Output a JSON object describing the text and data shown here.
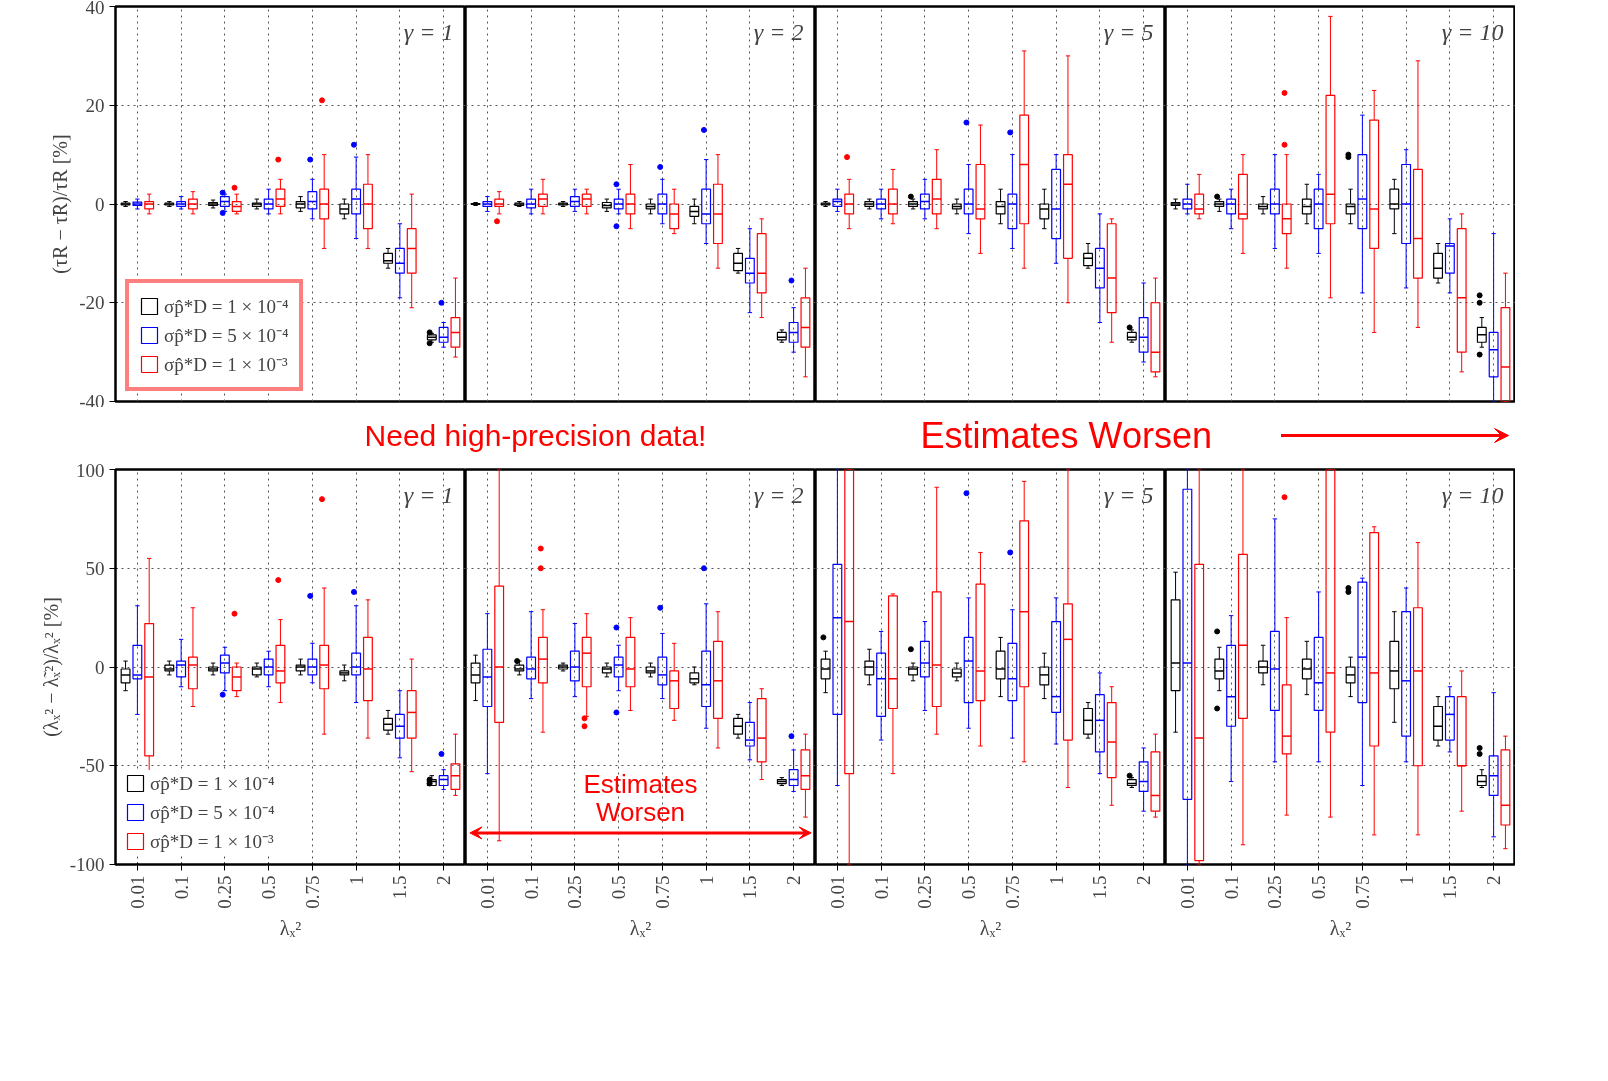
{
  "chart_data": [
    {
      "type": "box",
      "categories": [
        "0.01",
        "0.1",
        "0.25",
        "0.5",
        "0.75",
        "1",
        "1.5",
        "2"
      ],
      "ylim": [
        -40,
        40
      ],
      "yticks": [
        -40,
        -20,
        0,
        20,
        40
      ],
      "grid": true,
      "ylabel": "(τR − τ̃R)/τR [%]",
      "tick_labels": "y",
      "legend": "bottom left",
      "annotations": [
        "γ = 1"
      ],
      "series": [
        {
          "name": "σp̂*D = 1 × 10⁻⁴",
          "color": "#000000",
          "boxes": [
            {
              "low": -0.5,
              "q1": -0.2,
              "median": 0,
              "q3": 0.2,
              "high": 0.5
            },
            {
              "low": -0.5,
              "q1": -0.2,
              "median": 0,
              "q3": 0.2,
              "high": 0.5
            },
            {
              "low": -0.8,
              "q1": -0.3,
              "median": 0,
              "q3": 0.3,
              "high": 0.8
            },
            {
              "low": -1,
              "q1": -0.5,
              "median": 0,
              "q3": 0.2,
              "high": 1
            },
            {
              "low": -1.5,
              "q1": -0.8,
              "median": 0,
              "q3": 0.5,
              "high": 1.5
            },
            {
              "low": -3,
              "q1": -2,
              "median": -1,
              "q3": 0,
              "high": 1
            },
            {
              "low": -13,
              "q1": -12,
              "median": -11.5,
              "q3": -10,
              "high": -9
            },
            {
              "low": -28,
              "q1": -27.5,
              "median": -27,
              "q3": -26.5,
              "high": -26.2,
              "outliers": [
                -26,
                -28.2
              ]
            }
          ]
        },
        {
          "name": "σp̂*D = 5 × 10⁻⁴",
          "color": "#0000ff",
          "boxes": [
            {
              "low": -1,
              "q1": -0.3,
              "median": 0,
              "q3": 0.4,
              "high": 1
            },
            {
              "low": -1,
              "q1": -0.5,
              "median": 0,
              "q3": 0.5,
              "high": 1.5
            },
            {
              "low": -1.5,
              "q1": -0.5,
              "median": 0.5,
              "q3": 1.5,
              "high": 2,
              "outliers": [
                2.3,
                -1.8
              ]
            },
            {
              "low": -2,
              "q1": -1,
              "median": 0,
              "q3": 1,
              "high": 3
            },
            {
              "low": -3,
              "q1": -1,
              "median": 0.5,
              "q3": 2.5,
              "high": 5,
              "outliers": [
                9
              ]
            },
            {
              "low": -7,
              "q1": -2,
              "median": 1,
              "q3": 3,
              "high": 9.5,
              "outliers": [
                12
              ]
            },
            {
              "low": -19,
              "q1": -14,
              "median": -12,
              "q3": -9,
              "high": -4
            },
            {
              "low": -29,
              "q1": -28,
              "median": -27,
              "q3": -25,
              "high": -24,
              "outliers": [
                -20
              ]
            }
          ]
        },
        {
          "name": "σp̂*D = 1 × 10⁻³",
          "color": "#ff0000",
          "boxes": [
            {
              "low": -2,
              "q1": -1,
              "median": 0,
              "q3": 0.5,
              "high": 2
            },
            {
              "low": -2,
              "q1": -1,
              "median": 0,
              "q3": 1,
              "high": 2.5
            },
            {
              "low": -2,
              "q1": -1.5,
              "median": -0.5,
              "q3": 0.5,
              "high": 2,
              "outliers": [
                3.3
              ]
            },
            {
              "low": -2,
              "q1": -0.5,
              "median": 1,
              "q3": 3,
              "high": 5,
              "outliers": [
                9
              ]
            },
            {
              "low": -9,
              "q1": -3,
              "median": 0,
              "q3": 3,
              "high": 10,
              "outliers": [
                21
              ]
            },
            {
              "low": -9,
              "q1": -5,
              "median": 0,
              "q3": 4,
              "high": 10
            },
            {
              "low": -21,
              "q1": -14,
              "median": -9,
              "q3": -5,
              "high": 2
            },
            {
              "low": -31,
              "q1": -29,
              "median": -26,
              "q3": -23,
              "high": -15
            }
          ]
        }
      ]
    },
    {
      "type": "box",
      "categories": [
        "0.01",
        "0.1",
        "0.25",
        "0.5",
        "0.75",
        "1",
        "1.5",
        "2"
      ],
      "ylim": [
        -40,
        40
      ],
      "yticks": [
        -40,
        -20,
        0,
        20,
        40
      ],
      "grid": true,
      "tick_labels": false,
      "annotations": [
        "γ = 2"
      ],
      "series": [
        {
          "color": "#000000",
          "boxes": [
            {
              "low": -0.3,
              "q1": -0.1,
              "median": 0,
              "q3": 0.1,
              "high": 0.3
            },
            {
              "low": -0.5,
              "q1": -0.3,
              "median": 0,
              "q3": 0.2,
              "high": 0.5
            },
            {
              "low": -0.5,
              "q1": -0.2,
              "median": 0,
              "q3": 0.2,
              "high": 0.5
            },
            {
              "low": -1.5,
              "q1": -0.8,
              "median": -0.3,
              "q3": 0.3,
              "high": 1
            },
            {
              "low": -2,
              "q1": -1,
              "median": -0.5,
              "q3": 0,
              "high": 1
            },
            {
              "low": -4,
              "q1": -2.5,
              "median": -1.5,
              "q3": -0.5,
              "high": 1
            },
            {
              "low": -14,
              "q1": -13.5,
              "median": -12,
              "q3": -10,
              "high": -9
            },
            {
              "low": -28,
              "q1": -27.5,
              "median": -27,
              "q3": -26,
              "high": -25.5
            }
          ]
        },
        {
          "color": "#0000ff",
          "boxes": [
            {
              "low": -1.5,
              "q1": -0.5,
              "median": 0,
              "q3": 0.5,
              "high": 1.5
            },
            {
              "low": -2,
              "q1": -0.8,
              "median": 0,
              "q3": 1,
              "high": 3
            },
            {
              "low": -1.5,
              "q1": -0.5,
              "median": 0.5,
              "q3": 1.5,
              "high": 3
            },
            {
              "low": -2,
              "q1": -1,
              "median": 0,
              "q3": 1,
              "high": 3,
              "outliers": [
                4,
                -4.5
              ]
            },
            {
              "low": -4,
              "q1": -2,
              "median": 0,
              "q3": 2,
              "high": 5,
              "outliers": [
                7.5
              ]
            },
            {
              "low": -8,
              "q1": -4,
              "median": -2,
              "q3": 3,
              "high": 9,
              "outliers": [
                15
              ]
            },
            {
              "low": -22,
              "q1": -16,
              "median": -14,
              "q3": -11,
              "high": -5
            },
            {
              "low": -30,
              "q1": -28,
              "median": -26,
              "q3": -24,
              "high": -21,
              "outliers": [
                -15.5
              ]
            }
          ]
        },
        {
          "color": "#ff0000",
          "boxes": [
            {
              "low": -2,
              "q1": -0.5,
              "median": 0,
              "q3": 1,
              "high": 2.5,
              "outliers": [
                -3.5
              ]
            },
            {
              "low": -2,
              "q1": -0.5,
              "median": 1,
              "q3": 2,
              "high": 5
            },
            {
              "low": -2,
              "q1": -0.5,
              "median": 1,
              "q3": 2,
              "high": 3
            },
            {
              "low": -5,
              "q1": -2,
              "median": 0,
              "q3": 2,
              "high": 8
            },
            {
              "low": -6,
              "q1": -5,
              "median": -2,
              "q3": 0,
              "high": 3
            },
            {
              "low": -13,
              "q1": -8,
              "median": -2,
              "q3": 4,
              "high": 10
            },
            {
              "low": -23,
              "q1": -18,
              "median": -14,
              "q3": -6,
              "high": -3
            },
            {
              "low": -35,
              "q1": -29,
              "median": -25,
              "q3": -19,
              "high": -13
            }
          ]
        }
      ]
    },
    {
      "type": "box",
      "categories": [
        "0.01",
        "0.1",
        "0.25",
        "0.5",
        "0.75",
        "1",
        "1.5",
        "2"
      ],
      "ylim": [
        -40,
        40
      ],
      "yticks": [
        -40,
        -20,
        0,
        20,
        40
      ],
      "grid": true,
      "tick_labels": false,
      "annotations": [
        "γ = 5"
      ],
      "series": [
        {
          "color": "#000000",
          "boxes": [
            {
              "low": -0.5,
              "q1": -0.2,
              "median": 0,
              "q3": 0.2,
              "high": 0.5
            },
            {
              "low": -1,
              "q1": -0.5,
              "median": 0,
              "q3": 0.5,
              "high": 1
            },
            {
              "low": -1,
              "q1": -0.5,
              "median": 0,
              "q3": 0.5,
              "high": 1,
              "outliers": [
                1.5
              ]
            },
            {
              "low": -2,
              "q1": -1,
              "median": -0.5,
              "q3": 0,
              "high": 1
            },
            {
              "low": -4,
              "q1": -2,
              "median": -0.5,
              "q3": 0.5,
              "high": 3
            },
            {
              "low": -5,
              "q1": -3,
              "median": -1,
              "q3": 0,
              "high": 3
            },
            {
              "low": -13,
              "q1": -12.5,
              "median": -11,
              "q3": -10,
              "high": -8
            },
            {
              "low": -28,
              "q1": -27.5,
              "median": -27,
              "q3": -26,
              "high": -25.5,
              "outliers": [
                -25
              ]
            }
          ]
        },
        {
          "color": "#0000ff",
          "boxes": [
            {
              "low": -1.5,
              "q1": -0.5,
              "median": 0.5,
              "q3": 1,
              "high": 3
            },
            {
              "low": -3,
              "q1": -1,
              "median": 0,
              "q3": 1,
              "high": 3
            },
            {
              "low": -3,
              "q1": -1,
              "median": 0.5,
              "q3": 2,
              "high": 5
            },
            {
              "low": -6,
              "q1": -2,
              "median": 0,
              "q3": 3,
              "high": 8,
              "outliers": [
                16.5
              ]
            },
            {
              "low": -9,
              "q1": -5,
              "median": 0,
              "q3": 2,
              "high": 10,
              "outliers": [
                14.5
              ]
            },
            {
              "low": -12,
              "q1": -7,
              "median": -1,
              "q3": 7,
              "high": 10
            },
            {
              "low": -24,
              "q1": -17,
              "median": -13,
              "q3": -9,
              "high": -2
            },
            {
              "low": -32,
              "q1": -30,
              "median": -27,
              "q3": -23,
              "high": -16
            }
          ]
        },
        {
          "color": "#ff0000",
          "boxes": [
            {
              "low": -5,
              "q1": -2,
              "median": 0,
              "q3": 2,
              "high": 5,
              "outliers": [
                9.5
              ]
            },
            {
              "low": -4,
              "q1": -2,
              "median": 0,
              "q3": 3,
              "high": 7
            },
            {
              "low": -5,
              "q1": -2,
              "median": 1,
              "q3": 5,
              "high": 11
            },
            {
              "low": -10,
              "q1": -3,
              "median": -1,
              "q3": 8,
              "high": 16
            },
            {
              "low": -13,
              "q1": -4,
              "median": 8,
              "q3": 18,
              "high": 31
            },
            {
              "low": -20,
              "q1": -11,
              "median": 4,
              "q3": 10,
              "high": 30
            },
            {
              "low": -28,
              "q1": -22,
              "median": -15,
              "q3": -4,
              "high": -3
            },
            {
              "low": -35,
              "q1": -34,
              "median": -30,
              "q3": -20,
              "high": -15
            }
          ]
        }
      ]
    },
    {
      "type": "box",
      "categories": [
        "0.01",
        "0.1",
        "0.25",
        "0.5",
        "0.75",
        "1",
        "1.5",
        "2"
      ],
      "ylim": [
        -40,
        40
      ],
      "yticks": [
        -40,
        -20,
        0,
        20,
        40
      ],
      "grid": true,
      "tick_labels": false,
      "annotations": [
        "γ = 10"
      ],
      "series": [
        {
          "color": "#000000",
          "boxes": [
            {
              "low": -1,
              "q1": -0.3,
              "median": 0,
              "q3": 0.3,
              "high": 1
            },
            {
              "low": -1.5,
              "q1": -0.5,
              "median": 0,
              "q3": 0.5,
              "high": 1,
              "outliers": [
                1.5
              ]
            },
            {
              "low": -2,
              "q1": -1,
              "median": -0.5,
              "q3": 0,
              "high": 1.5
            },
            {
              "low": -4,
              "q1": -2,
              "median": -0.5,
              "q3": 1,
              "high": 4
            },
            {
              "low": -4,
              "q1": -2,
              "median": -0.5,
              "q3": 0,
              "high": 3,
              "outliers": [
                9.5,
                10
              ]
            },
            {
              "low": -6,
              "q1": -1,
              "median": 0,
              "q3": 3,
              "high": 5
            },
            {
              "low": -16,
              "q1": -15,
              "median": -13,
              "q3": -10,
              "high": -8
            },
            {
              "low": -29,
              "q1": -28,
              "median": -26.5,
              "q3": -25,
              "high": -23,
              "outliers": [
                -18.5,
                -20,
                -30.5
              ]
            }
          ]
        },
        {
          "color": "#0000ff",
          "boxes": [
            {
              "low": -2,
              "q1": -1,
              "median": 0,
              "q3": 1,
              "high": 4
            },
            {
              "low": -5,
              "q1": -2,
              "median": 0,
              "q3": 1,
              "high": 3
            },
            {
              "low": -9,
              "q1": -2,
              "median": 0,
              "q3": 3,
              "high": 10
            },
            {
              "low": -10,
              "q1": -5,
              "median": 0,
              "q3": 3,
              "high": 6
            },
            {
              "low": -18,
              "q1": -5,
              "median": 1,
              "q3": 10,
              "high": 18
            },
            {
              "low": -17,
              "q1": -8,
              "median": 0,
              "q3": 8,
              "high": 11
            },
            {
              "low": -18,
              "q1": -14,
              "median": -8.5,
              "q3": -8,
              "high": -3
            },
            {
              "low": -40,
              "q1": -35,
              "median": -29.5,
              "q3": -26,
              "high": -6
            }
          ]
        },
        {
          "color": "#ff0000",
          "boxes": [
            {
              "low": -3,
              "q1": -2,
              "median": -1,
              "q3": 2,
              "high": 6
            },
            {
              "low": -10,
              "q1": -3,
              "median": -2,
              "q3": 6,
              "high": 10
            },
            {
              "low": -13,
              "q1": -6,
              "median": -3,
              "q3": 0,
              "high": 10,
              "outliers": [
                12,
                22.5
              ]
            },
            {
              "low": -19,
              "q1": -4,
              "median": 2,
              "q3": 22,
              "high": 38
            },
            {
              "low": -26,
              "q1": -9,
              "median": -1,
              "q3": 17,
              "high": 23
            },
            {
              "low": -25,
              "q1": -15,
              "median": -7,
              "q3": 7,
              "high": 29
            },
            {
              "low": -34,
              "q1": -30,
              "median": -19,
              "q3": -5,
              "high": -2
            },
            {
              "low": -40,
              "q1": -40,
              "median": -33,
              "q3": -21,
              "high": -14
            }
          ]
        }
      ]
    },
    {
      "type": "box",
      "categories": [
        "0.01",
        "0.1",
        "0.25",
        "0.5",
        "0.75",
        "1",
        "1.5",
        "2"
      ],
      "ylim": [
        -100,
        100
      ],
      "yticks": [
        -100,
        -50,
        0,
        50,
        100
      ],
      "grid": true,
      "ylabel": "(λₓ² − λ̃ₓ²)/λₓ² [%]",
      "xlabel": "λₓ²",
      "legend": "bottom left",
      "annotations": [
        "γ = 1",
        "Need high-precision data!"
      ],
      "series": [
        {
          "name": "σp̂*D = 1 × 10⁻⁴",
          "color": "#000000",
          "boxes": [
            {
              "low": -12,
              "q1": -8,
              "median": -4,
              "q3": -1,
              "high": 3
            },
            {
              "low": -4,
              "q1": -2,
              "median": -1,
              "q3": 1,
              "high": 3
            },
            {
              "low": -4,
              "q1": -2,
              "median": -1,
              "q3": 0,
              "high": 2
            },
            {
              "low": -5,
              "q1": -4,
              "median": -1,
              "q3": 0,
              "high": 2
            },
            {
              "low": -4,
              "q1": -2,
              "median": 0,
              "q3": 1,
              "high": 4
            },
            {
              "low": -7,
              "q1": -4,
              "median": -3,
              "q3": -2,
              "high": 1
            },
            {
              "low": -34,
              "q1": -32,
              "median": -29,
              "q3": -26,
              "high": -22
            },
            {
              "low": -60,
              "q1": -60,
              "median": -58,
              "q3": -57,
              "high": -55,
              "outliers": [
                -57,
                -59
              ]
            }
          ]
        },
        {
          "name": "σp̂*D = 5 × 10⁻⁴",
          "color": "#0000ff",
          "boxes": [
            {
              "low": -24,
              "q1": -6,
              "median": -4,
              "q3": 11,
              "high": 31
            },
            {
              "low": -10,
              "q1": -5,
              "median": 1,
              "q3": 3,
              "high": 14
            },
            {
              "low": -12,
              "q1": -3,
              "median": 2,
              "q3": 6,
              "high": 10,
              "outliers": [
                -14
              ]
            },
            {
              "low": -10,
              "q1": -4,
              "median": 0,
              "q3": 4,
              "high": 8
            },
            {
              "low": -8,
              "q1": -4,
              "median": 0,
              "q3": 4,
              "high": 12,
              "outliers": [
                36
              ]
            },
            {
              "low": -18,
              "q1": -4,
              "median": 0,
              "q3": 7,
              "high": 31,
              "outliers": [
                38
              ]
            },
            {
              "low": -46,
              "q1": -36,
              "median": -30,
              "q3": -24,
              "high": -12
            },
            {
              "low": -62,
              "q1": -60,
              "median": -57,
              "q3": -55,
              "high": -52,
              "outliers": [
                -44
              ]
            }
          ]
        },
        {
          "name": "σp̂*D = 1 × 10⁻³",
          "color": "#ff0000",
          "boxes": [
            {
              "low": -64,
              "q1": -45,
              "median": -5,
              "q3": 22,
              "high": 55
            },
            {
              "low": -20,
              "q1": -11,
              "median": 1,
              "q3": 5,
              "high": 30
            },
            {
              "low": -15,
              "q1": -12,
              "median": -5,
              "q3": 0,
              "high": 2,
              "outliers": [
                27
              ]
            },
            {
              "low": -18,
              "q1": -8,
              "median": -2,
              "q3": 11,
              "high": 24,
              "outliers": [
                44
              ]
            },
            {
              "low": -34,
              "q1": -11,
              "median": 1,
              "q3": 11,
              "high": 40,
              "outliers": [
                85
              ]
            },
            {
              "low": -36,
              "q1": -17,
              "median": -1,
              "q3": 15,
              "high": 34
            },
            {
              "low": -53,
              "q1": -36,
              "median": -23,
              "q3": -12,
              "high": 4
            },
            {
              "low": -65,
              "q1": -62,
              "median": -55,
              "q3": -49,
              "high": -34
            }
          ]
        }
      ]
    },
    {
      "type": "box",
      "categories": [
        "0.01",
        "0.1",
        "0.25",
        "0.5",
        "0.75",
        "1",
        "1.5",
        "2"
      ],
      "ylim": [
        -100,
        100
      ],
      "yticks": [
        -100,
        -50,
        0,
        50,
        100
      ],
      "grid": true,
      "xlabel": "λₓ²",
      "tick_labels": "x",
      "annotations": [
        "γ = 2",
        "Estimates Worsen"
      ],
      "series": [
        {
          "color": "#000000",
          "boxes": [
            {
              "low": -17,
              "q1": -8,
              "median": -4,
              "q3": 2,
              "high": 6
            },
            {
              "low": -4,
              "q1": -2,
              "median": -1,
              "q3": 1,
              "high": 3,
              "outliers": [
                3
              ]
            },
            {
              "low": -2,
              "q1": -1,
              "median": 0,
              "q3": 1,
              "high": 2
            },
            {
              "low": -5,
              "q1": -3,
              "median": -1,
              "q3": 0,
              "high": 2
            },
            {
              "low": -5,
              "q1": -3,
              "median": -2,
              "q3": 0,
              "high": 2
            },
            {
              "low": -9,
              "q1": -8,
              "median": -6,
              "q3": -3,
              "high": 0
            },
            {
              "low": -36,
              "q1": -34,
              "median": -30,
              "q3": -26,
              "high": -24
            },
            {
              "low": -60,
              "q1": -59,
              "median": -58,
              "q3": -57,
              "high": -56
            }
          ]
        },
        {
          "color": "#0000ff",
          "boxes": [
            {
              "low": -54,
              "q1": -20,
              "median": -5,
              "q3": 9,
              "high": 27
            },
            {
              "low": -16,
              "q1": -6,
              "median": -1,
              "q3": 5,
              "high": 28
            },
            {
              "low": -15,
              "q1": -7,
              "median": 0,
              "q3": 8,
              "high": 22
            },
            {
              "low": -12,
              "q1": -5,
              "median": 1,
              "q3": 5,
              "high": 11,
              "outliers": [
                20,
                -23
              ]
            },
            {
              "low": -16,
              "q1": -9,
              "median": -4,
              "q3": 5,
              "high": 17,
              "outliers": [
                30
              ]
            },
            {
              "low": -31,
              "q1": -20,
              "median": -9,
              "q3": 8,
              "high": 32,
              "outliers": [
                50
              ]
            },
            {
              "low": -47,
              "q1": -40,
              "median": -37,
              "q3": -28,
              "high": -18
            },
            {
              "low": -63,
              "q1": -60,
              "median": -57,
              "q3": -52,
              "high": -42,
              "outliers": [
                -35
              ]
            }
          ]
        },
        {
          "color": "#ff0000",
          "boxes": [
            {
              "low": -88,
              "q1": -28,
              "median": 0,
              "q3": 41,
              "high": 100
            },
            {
              "low": -33,
              "q1": -8,
              "median": 4,
              "q3": 15,
              "high": 29,
              "outliers": [
                50,
                60
              ]
            },
            {
              "low": -25,
              "q1": -10,
              "median": 7,
              "q3": 15,
              "high": 27,
              "outliers": [
                -26,
                -30
              ]
            },
            {
              "low": -22,
              "q1": -10,
              "median": -1,
              "q3": 15,
              "high": 25
            },
            {
              "low": -27,
              "q1": -21,
              "median": -7,
              "q3": -2,
              "high": 12
            },
            {
              "low": -41,
              "q1": -26,
              "median": -7,
              "q3": 13,
              "high": 28
            },
            {
              "low": -57,
              "q1": -48,
              "median": -36,
              "q3": -16,
              "high": -11
            },
            {
              "low": -76,
              "q1": -62,
              "median": -55,
              "q3": -42,
              "high": -34
            }
          ]
        }
      ]
    },
    {
      "type": "box",
      "categories": [
        "0.01",
        "0.1",
        "0.25",
        "0.5",
        "0.75",
        "1",
        "1.5",
        "2"
      ],
      "ylim": [
        -100,
        100
      ],
      "yticks": [
        -100,
        -50,
        0,
        50,
        100
      ],
      "grid": true,
      "xlabel": "λₓ²",
      "tick_labels": "x",
      "annotations": [
        "γ = 5",
        "Estimates Worsen"
      ],
      "series": [
        {
          "color": "#000000",
          "boxes": [
            {
              "low": -13,
              "q1": -6,
              "median": -1,
              "q3": 4,
              "high": 8,
              "outliers": [
                15
              ]
            },
            {
              "low": -9,
              "q1": -4,
              "median": 0,
              "q3": 3,
              "high": 9
            },
            {
              "low": -7,
              "q1": -4,
              "median": -1,
              "q3": 0,
              "high": 2,
              "outliers": [
                9
              ]
            },
            {
              "low": -7,
              "q1": -5,
              "median": -3,
              "q3": -1,
              "high": 2
            },
            {
              "low": -15,
              "q1": -6,
              "median": -1,
              "q3": 8,
              "high": 15
            },
            {
              "low": -16,
              "q1": -9,
              "median": -4,
              "q3": 0,
              "high": 7
            },
            {
              "low": -36,
              "q1": -34,
              "median": -27,
              "q3": -21,
              "high": -18
            },
            {
              "low": -61,
              "q1": -60,
              "median": -59,
              "q3": -57,
              "high": -56,
              "outliers": [
                -55
              ]
            }
          ]
        },
        {
          "color": "#0000ff",
          "boxes": [
            {
              "low": -60,
              "q1": -24,
              "median": 25,
              "q3": 52,
              "high": 100
            },
            {
              "low": -37,
              "q1": -25,
              "median": -6,
              "q3": 7,
              "high": 18
            },
            {
              "low": -22,
              "q1": -5,
              "median": 2,
              "q3": 13,
              "high": 23
            },
            {
              "low": -31,
              "q1": -18,
              "median": 3,
              "q3": 15,
              "high": 35,
              "outliers": [
                88
              ]
            },
            {
              "low": -36,
              "q1": -17,
              "median": -6,
              "q3": 12,
              "high": 29,
              "outliers": [
                58
              ]
            },
            {
              "low": -39,
              "q1": -23,
              "median": -15,
              "q3": 23,
              "high": 35
            },
            {
              "low": -54,
              "q1": -43,
              "median": -27,
              "q3": -14,
              "high": -3
            },
            {
              "low": -73,
              "q1": -63,
              "median": -58,
              "q3": -48,
              "high": -41
            }
          ]
        },
        {
          "color": "#ff0000",
          "boxes": [
            {
              "low": -100,
              "q1": -54,
              "median": 23,
              "q3": 100,
              "high": 100
            },
            {
              "low": -54,
              "q1": -21,
              "median": -6,
              "q3": 36,
              "high": 37
            },
            {
              "low": -34,
              "q1": -20,
              "median": 1,
              "q3": 38,
              "high": 91
            },
            {
              "low": -40,
              "q1": -17,
              "median": -2,
              "q3": 42,
              "high": 58
            },
            {
              "low": -48,
              "q1": -10,
              "median": 28,
              "q3": 74,
              "high": 94
            },
            {
              "low": -61,
              "q1": -37,
              "median": 14,
              "q3": 32,
              "high": 100
            },
            {
              "low": -70,
              "q1": -56,
              "median": -38,
              "q3": -18,
              "high": -10
            },
            {
              "low": -76,
              "q1": -73,
              "median": -65,
              "q3": -43,
              "high": -34
            }
          ]
        }
      ]
    },
    {
      "type": "box",
      "categories": [
        "0.01",
        "0.1",
        "0.25",
        "0.5",
        "0.75",
        "1",
        "1.5",
        "2"
      ],
      "ylim": [
        -100,
        100
      ],
      "yticks": [
        -100,
        -50,
        0,
        50,
        100
      ],
      "grid": true,
      "xlabel": "λₓ²",
      "tick_labels": "x",
      "annotations": [
        "γ = 10"
      ],
      "series": [
        {
          "color": "#000000",
          "boxes": [
            {
              "low": -33,
              "q1": -12,
              "median": 2,
              "q3": 34,
              "high": 48
            },
            {
              "low": -12,
              "q1": -6,
              "median": -2,
              "q3": 4,
              "high": 10,
              "outliers": [
                18,
                -21
              ]
            },
            {
              "low": -9,
              "q1": -3,
              "median": 0,
              "q3": 3,
              "high": 11
            },
            {
              "low": -14,
              "q1": -6,
              "median": -1,
              "q3": 4,
              "high": 13
            },
            {
              "low": -15,
              "q1": -8,
              "median": -4,
              "q3": 0,
              "high": 5,
              "outliers": [
                38,
                40
              ]
            },
            {
              "low": -28,
              "q1": -11,
              "median": -2,
              "q3": 13,
              "high": 28
            },
            {
              "low": -40,
              "q1": -37,
              "median": -30,
              "q3": -20,
              "high": -15
            },
            {
              "low": -61,
              "q1": -60,
              "median": -58,
              "q3": -55,
              "high": -52,
              "outliers": [
                -41,
                -44
              ]
            }
          ]
        },
        {
          "color": "#0000ff",
          "boxes": [
            {
              "low": -100,
              "q1": -67,
              "median": 2,
              "q3": 90,
              "high": 100
            },
            {
              "low": -58,
              "q1": -30,
              "median": -15,
              "q3": 11,
              "high": 26
            },
            {
              "low": -48,
              "q1": -22,
              "median": -1,
              "q3": 18,
              "high": 75
            },
            {
              "low": -48,
              "q1": -22,
              "median": -8,
              "q3": 15,
              "high": 38
            },
            {
              "low": -60,
              "q1": -18,
              "median": 5,
              "q3": 43,
              "high": 45
            },
            {
              "low": -48,
              "q1": -35,
              "median": -7,
              "q3": 28,
              "high": 40
            },
            {
              "low": -43,
              "q1": -37,
              "median": -24,
              "q3": -15,
              "high": -10
            },
            {
              "low": -86,
              "q1": -65,
              "median": -55,
              "q3": -45,
              "high": -13
            }
          ]
        },
        {
          "color": "#ff0000",
          "boxes": [
            {
              "low": -100,
              "q1": -98,
              "median": -36,
              "q3": 52,
              "high": 100
            },
            {
              "low": -90,
              "q1": -26,
              "median": 11,
              "q3": 57,
              "high": 100
            },
            {
              "low": -75,
              "q1": -44,
              "median": -35,
              "q3": -9,
              "high": 25,
              "outliers": [
                86
              ]
            },
            {
              "low": -76,
              "q1": -33,
              "median": -3,
              "q3": 100,
              "high": 100
            },
            {
              "low": -85,
              "q1": -40,
              "median": -3,
              "q3": 68,
              "high": 71
            },
            {
              "low": -85,
              "q1": -50,
              "median": -2,
              "q3": 30,
              "high": 63
            },
            {
              "low": -73,
              "q1": -50,
              "median": -50,
              "q3": -15,
              "high": -2
            },
            {
              "low": -92,
              "q1": -80,
              "median": -70,
              "q3": -42,
              "high": -35
            }
          ]
        }
      ]
    }
  ]
}
